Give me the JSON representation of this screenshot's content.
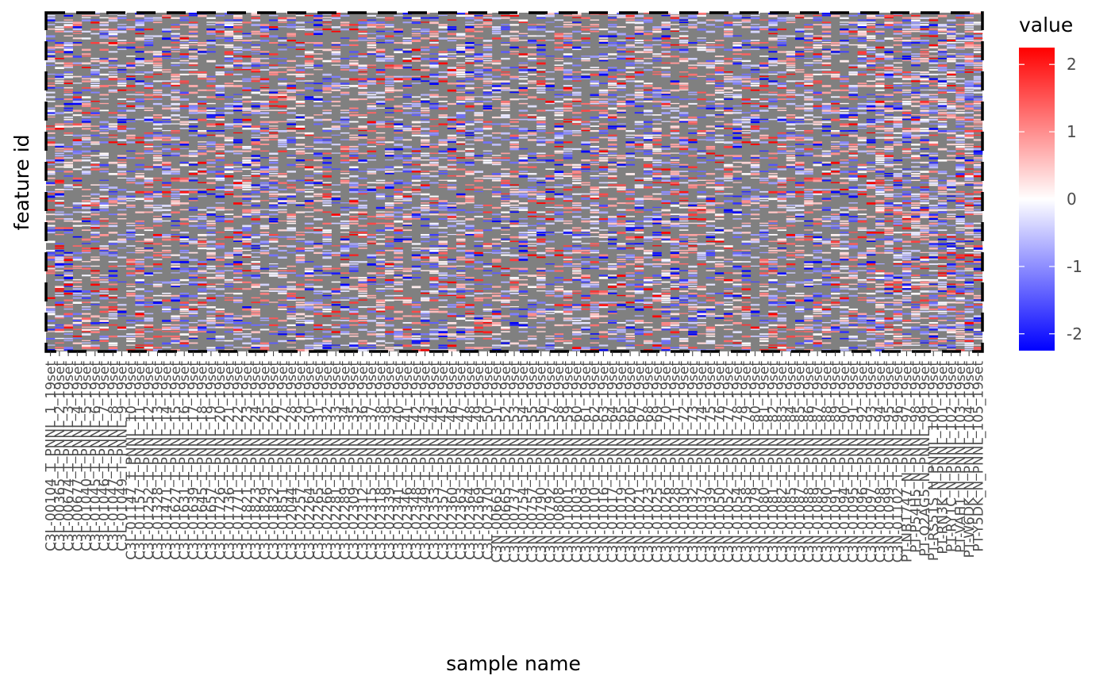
{
  "chart_data": {
    "type": "heatmap",
    "title": "",
    "xlabel": "sample name",
    "ylabel": "feature id",
    "x_tick_labels": [
      "C3L-00104_T_PNNL_1_19set",
      "C3L-00365_T_PNNL_2_19set",
      "C3L-00674_T_PNNL_3_19set",
      "C3L-00677_T_PNNL_4_19set",
      "C3L-01040_T_PNNL_5_19set",
      "C3L-01045_T_PNNL_6_19set",
      "C3L-01046_T_PNNL_7_19set",
      "C3L-01047_T_PNNL_8_19set",
      "C3L-01049_T_PNNL_9_19set",
      "C3L-01147_T_PNNL_10_19set",
      "C3L-01157_T_PNNL_11_19set",
      "C3L-01252_T_PNNL_12_19set",
      "C3L-01328_T_PNNL_13_19set",
      "C3L-01471_T_PNNL_14_19set",
      "C3L-01627_T_PNNL_15_19set",
      "C3L-01631_T_PNNL_16_19set",
      "C3L-01639_T_PNNL_17_19set",
      "C3L-01645_T_PNNL_18_19set",
      "C3L-01657_T_PNNL_19_19set",
      "C3L-01726_T_PNNL_20_19set",
      "C3L-01736_T_PNNL_21_19set",
      "C3L-01771_T_PNNL_22_19set",
      "C3L-01821_T_PNNL_23_19set",
      "C3L-01823_T_PNNL_24_19set",
      "C3L-01829_T_PNNL_25_19set",
      "C3L-01832_T_PNNL_26_19set",
      "C3L-01851_T_PNNL_27_19set",
      "C3L-02044_T_PNNL_28_19set",
      "C3L-02257_T_PNNL_29_19set",
      "C3L-02264_T_PNNL_30_19set",
      "C3L-02265_T_PNNL_31_19set",
      "C3L-02266_T_PNNL_32_19set",
      "C3L-02281_T_PNNL_33_19set",
      "C3L-02289_T_PNNL_34_19set",
      "C3L-02309_T_PNNL_35_19set",
      "C3L-02312_T_PNNL_36_19set",
      "C3L-02315_T_PNNL_37_19set",
      "C3L-02318_T_PNNL_38_19set",
      "C3L-02339_T_PNNL_39_19set",
      "C3L-02341_T_PNNL_40_19set",
      "C3L-02346_T_PNNL_41_19set",
      "C3L-02348_T_PNNL_42_19set",
      "C3L-02349_T_PNNL_43_19set",
      "C3L-02353_T_PNNL_44_19set",
      "C3L-02357_T_PNNL_45_19set",
      "C3L-02360_T_PNNL_46_19set",
      "C3L-02363_T_PNNL_47_19set",
      "C3L-02364_T_PNNL_48_19set",
      "C3L-02369_T_PNNL_49_19set",
      "C3L-02370_T_PNNL_50_19set",
      "C3N-00663_T_PNNL_51_19set",
      "C3N-00665_T_PNNL_52_19set",
      "C3N-00737_T_PNNL_53_19set",
      "C3N-00754_T_PNNL_54_19set",
      "C3N-00757_T_PNNL_55_19set",
      "C3N-00790_T_PNNL_56_19set",
      "C3N-00792_T_PNNL_57_19set",
      "C3N-00808_T_PNNL_58_19set",
      "C3N-01001_T_PNNL_59_19set",
      "C3N-01003_T_PNNL_60_19set",
      "C3N-01009_T_PNNL_61_19set",
      "C3N-01010_T_PNNL_62_19set",
      "C3N-01016_T_PNNL_63_19set",
      "C3N-01017_T_PNNL_64_19set",
      "C3N-01019_T_PNNL_65_19set",
      "C3N-01020_T_PNNL_66_19set",
      "C3N-01021_T_PNNL_67_19set",
      "C3N-01023_T_PNNL_68_19set",
      "C3N-01025_T_PNNL_69_19set",
      "C3N-01026_T_PNNL_70_19set",
      "C3N-01028_T_PNNL_71_19set",
      "C3N-01030_T_PNNL_72_19set",
      "C3N-01032_T_PNNL_73_19set",
      "C3N-01037_T_PNNL_74_19set",
      "C3N-01039_T_PNNL_75_19set",
      "C3N-01050_T_PNNL_76_19set",
      "C3N-01052_T_PNNL_77_19set",
      "C3N-01054_T_PNNL_78_19set",
      "C3N-01058_T_PNNL_79_19set",
      "C3N-01079_T_PNNL_80_19set",
      "C3N-01080_T_PNNL_81_19set",
      "C3N-01081_T_PNNL_82_19set",
      "C3N-01082_T_PNNL_83_19set",
      "C3N-01085_T_PNNL_84_19set",
      "C3N-01087_T_PNNL_85_19set",
      "C3N-01088_T_PNNL_86_19set",
      "C3N-01089_T_PNNL_87_19set",
      "C3N-01090_T_PNNL_88_19set",
      "C3N-01091_T_PNNL_89_19set",
      "C3N-01094_T_PNNL_90_19set",
      "C3N-01095_T_PNNL_91_19set",
      "C3N-01096_T_PNNL_92_19set",
      "C3N-01097_T_PNNL_93_19set",
      "C3N-01098_T_PNNL_94_19set",
      "C3N-01099_T_PNNL_95_19set",
      "C3N-01102_T_PNNL_96_19set",
      "PT-NB1747_N_PNNL_97_19set",
      "PT-P54H5_N_PNNL_98_19set",
      "PT-Q2AG5_N_PNNL_99_19set",
      "PT-RS51S_N_PNNL_100_19set",
      "PT-RN3K_N_PNNL_101_19set",
      "PT-RY1C_N_PNNL_102_19set",
      "PT-VAH1_N_PNNL_103_19set",
      "PT-W6DK_N_PNNL_104_19set",
      "PT-Y5DK_N_PNNL_105_19set"
    ],
    "legend": {
      "title": "value",
      "ticks": [
        2,
        1,
        0,
        -1,
        -2
      ],
      "range": [
        -2.25,
        2.25
      ],
      "colors": {
        "low": "#0000ff",
        "mid": "#ffffff",
        "high": "#ff0000",
        "na": "#808080"
      }
    },
    "grid": false,
    "border": "dashed"
  }
}
